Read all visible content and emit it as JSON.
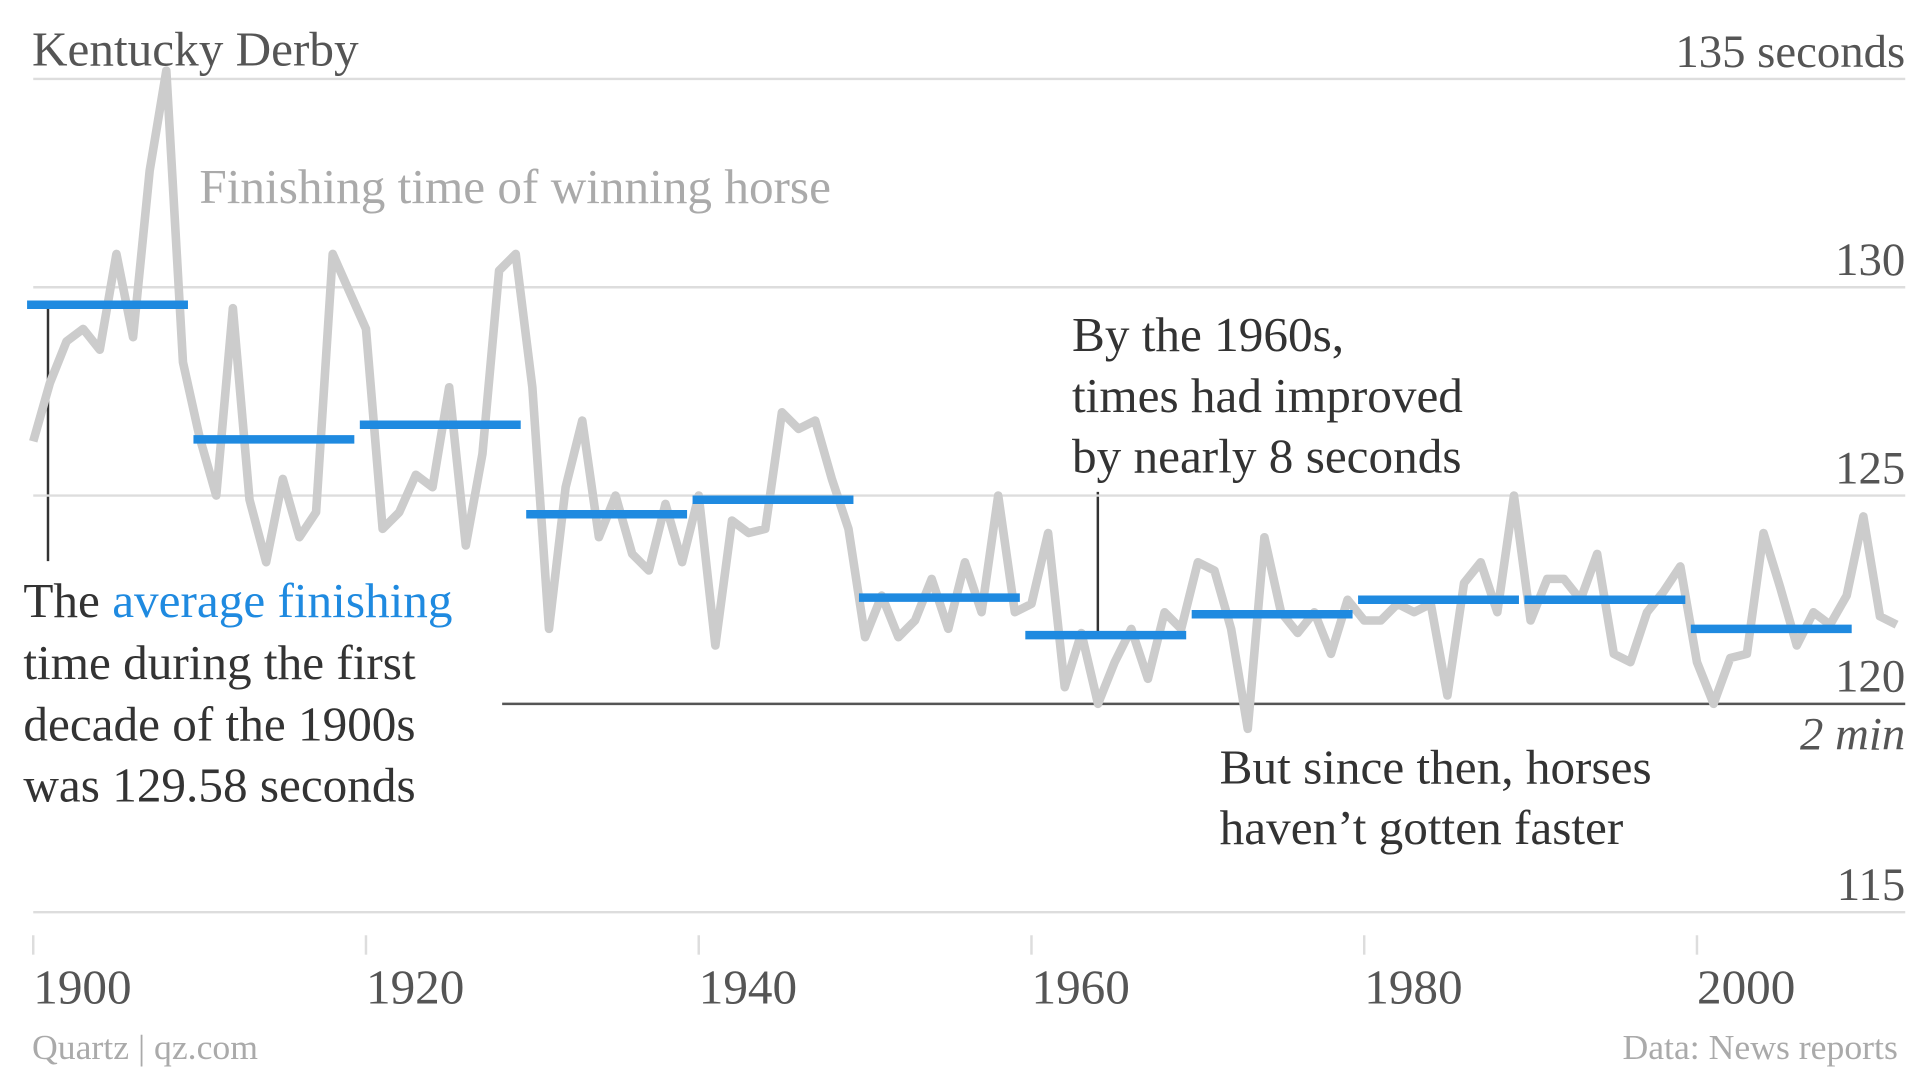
{
  "chart_data": {
    "type": "line",
    "title": "Kentucky Derby",
    "subtitle": "Finishing time of winning horse",
    "source": "Quartz | qz.com",
    "credit": "Data: News reports",
    "x": [
      1900,
      1901,
      1902,
      1903,
      1904,
      1905,
      1906,
      1907,
      1908,
      1909,
      1910,
      1911,
      1912,
      1913,
      1914,
      1915,
      1916,
      1917,
      1918,
      1919,
      1920,
      1921,
      1922,
      1923,
      1924,
      1925,
      1926,
      1927,
      1928,
      1929,
      1930,
      1931,
      1932,
      1933,
      1934,
      1935,
      1936,
      1937,
      1938,
      1939,
      1940,
      1941,
      1942,
      1943,
      1944,
      1945,
      1946,
      1947,
      1948,
      1949,
      1950,
      1951,
      1952,
      1953,
      1954,
      1955,
      1956,
      1957,
      1958,
      1959,
      1960,
      1961,
      1962,
      1963,
      1964,
      1965,
      1966,
      1967,
      1968,
      1969,
      1970,
      1971,
      1972,
      1973,
      1974,
      1975,
      1976,
      1977,
      1978,
      1979,
      1980,
      1981,
      1982,
      1983,
      1984,
      1985,
      1986,
      1987,
      1988,
      1989,
      1990,
      1991,
      1992,
      1993,
      1994,
      1995,
      1996,
      1997,
      1998,
      1999,
      2000,
      2001,
      2002,
      2003,
      2004,
      2005,
      2006,
      2007,
      2008,
      2009,
      2010,
      2011,
      2012
    ],
    "series": [
      {
        "color": "#cccccc",
        "values": [
          126.3,
          127.7,
          128.7,
          129.0,
          128.5,
          130.8,
          128.8,
          132.8,
          135.2,
          128.2,
          126.4,
          125.0,
          129.5,
          124.9,
          123.4,
          125.4,
          124.0,
          124.6,
          130.8,
          129.9,
          129.0,
          124.2,
          124.6,
          125.5,
          125.2,
          127.6,
          123.8,
          126.0,
          130.4,
          130.8,
          127.6,
          121.8,
          125.2,
          126.8,
          124.0,
          125.0,
          123.6,
          123.2,
          124.8,
          123.4,
          125.0,
          121.4,
          124.4,
          124.1,
          124.2,
          127.0,
          126.6,
          126.8,
          125.4,
          124.2,
          121.6,
          122.6,
          121.6,
          122.0,
          123.0,
          121.8,
          123.4,
          122.2,
          125.0,
          122.2,
          122.4,
          124.1,
          120.4,
          121.7,
          120.0,
          121.0,
          121.8,
          120.6,
          122.2,
          121.8,
          123.4,
          123.2,
          121.8,
          119.4,
          124.0,
          122.2,
          121.7,
          122.2,
          121.2,
          122.5,
          122.0,
          122.0,
          122.4,
          122.2,
          122.4,
          120.2,
          122.9,
          123.4,
          122.2,
          125.0,
          122.0,
          123.0,
          123.0,
          122.5,
          123.6,
          121.2,
          121.0,
          122.2,
          122.7,
          123.3,
          121.0,
          120.0,
          121.1,
          121.2,
          124.1,
          122.8,
          121.4,
          122.2,
          121.9,
          122.6,
          124.5,
          122.1,
          121.9
        ]
      }
    ],
    "decade_averages": {
      "color": "#1f8ae0",
      "decades": [
        1900,
        1910,
        1920,
        1930,
        1940,
        1950,
        1960,
        1970,
        1980,
        1990,
        2000
      ],
      "values": [
        129.58,
        126.35,
        126.7,
        124.55,
        124.9,
        122.55,
        121.65,
        122.15,
        122.5,
        122.5,
        121.8
      ]
    },
    "xlim": [
      1900,
      2012
    ],
    "xticks": [
      1900,
      1920,
      1940,
      1960,
      1980,
      2000
    ],
    "ylim": [
      115,
      135
    ],
    "yticks": [
      115,
      120,
      125,
      {
        "value": 135,
        "label": "135 seconds"
      },
      130
    ],
    "y_note": "2 min",
    "annotation_1_lead": "The",
    "annotation_1_highlight": "average finishing",
    "annotation_1_rest": [
      "time during the first",
      "decade of the 1900s",
      "was 129.58 seconds"
    ],
    "annotation_2": [
      "By the 1960s,",
      "times had improved",
      "by nearly 8 seconds"
    ],
    "annotation_3": [
      "But since then, horses",
      "haven’t gotten faster"
    ]
  }
}
